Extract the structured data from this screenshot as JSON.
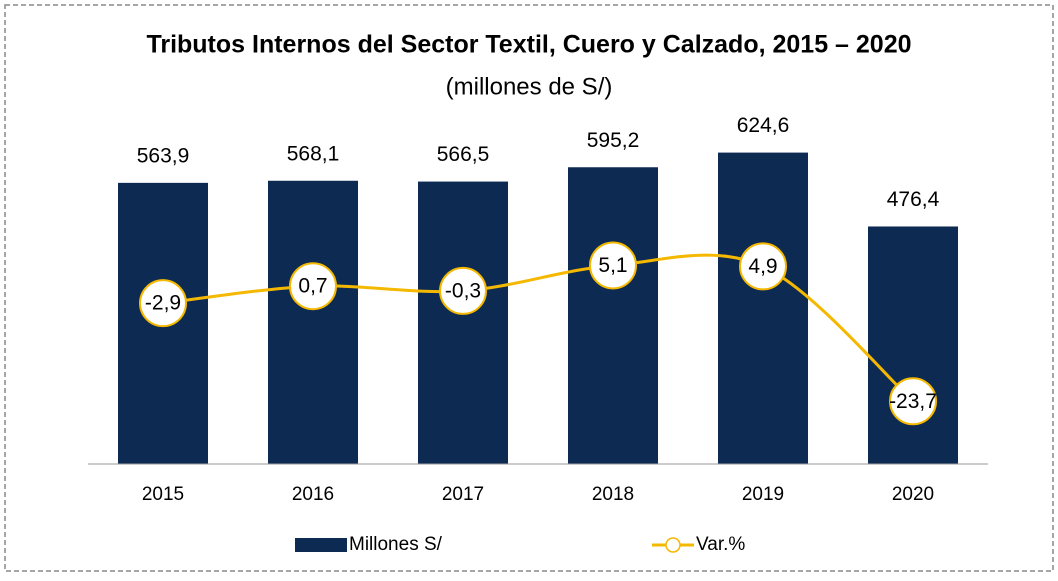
{
  "chart_data": {
    "type": "bar",
    "title": "Tributos Internos del Sector Textil, Cuero y Calzado, 2015 – 2020",
    "subtitle": "(millones de S/)",
    "categories": [
      "2015",
      "2016",
      "2017",
      "2018",
      "2019",
      "2020"
    ],
    "series": [
      {
        "name": "Millones S/",
        "type": "bar",
        "color": "#0d2b52",
        "values": [
          563.9,
          568.1,
          566.5,
          595.2,
          624.6,
          476.4
        ],
        "value_labels": [
          "563,9",
          "568,1",
          "566,5",
          "595,2",
          "624,6",
          "476,4"
        ]
      },
      {
        "name": "Var.%",
        "type": "line",
        "axis": "y2",
        "color": "#f5b800",
        "values": [
          -2.9,
          0.7,
          -0.3,
          5.1,
          4.9,
          -23.7
        ],
        "value_labels": [
          "-2,9",
          "0,7",
          "-0,3",
          "5,1",
          "4,9",
          "-23,7"
        ]
      }
    ],
    "ylim": [
      0,
      700
    ],
    "y2lim": [
      -37,
      37
    ],
    "legend": "bottom"
  }
}
